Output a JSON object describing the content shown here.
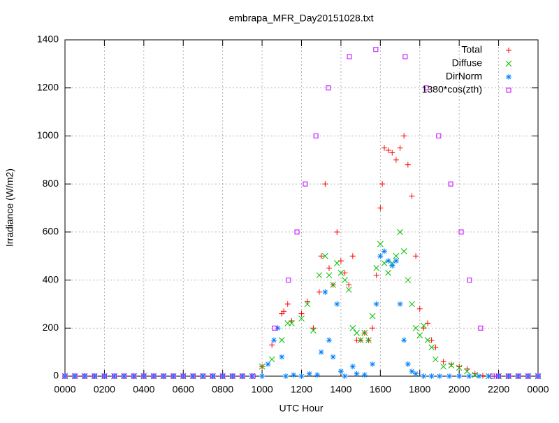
{
  "chart_data": {
    "type": "scatter",
    "title": "embrapa_MFR_Day20151028.txt",
    "x_label": "UTC Hour",
    "y_label": "Irradiance (W/m2)",
    "xlim": [
      0,
      24
    ],
    "ylim": [
      0,
      1400
    ],
    "xticks": [
      {
        "value": 0,
        "label": "0000"
      },
      {
        "value": 2,
        "label": "0200"
      },
      {
        "value": 4,
        "label": "0400"
      },
      {
        "value": 6,
        "label": "0600"
      },
      {
        "value": 8,
        "label": "0800"
      },
      {
        "value": 10,
        "label": "1000"
      },
      {
        "value": 12,
        "label": "1200"
      },
      {
        "value": 14,
        "label": "1400"
      },
      {
        "value": 16,
        "label": "1600"
      },
      {
        "value": 18,
        "label": "1800"
      },
      {
        "value": 20,
        "label": "2000"
      },
      {
        "value": 22,
        "label": "2200"
      },
      {
        "value": 24,
        "label": "0000"
      }
    ],
    "yticks": [
      0,
      200,
      400,
      600,
      800,
      1000,
      1200,
      1400
    ],
    "grid": true,
    "legend": "top-right",
    "series": [
      {
        "name": "Total",
        "color": "#ff0000",
        "marker": "plus",
        "x": [
          0,
          0.5,
          1,
          1.5,
          2,
          2.5,
          3,
          3.5,
          4,
          4.5,
          5,
          5.5,
          6,
          6.5,
          7,
          7.5,
          8,
          8.5,
          9,
          9.5,
          10,
          10.5,
          11,
          11.1,
          11.3,
          11.5,
          12,
          12.3,
          12.6,
          12.9,
          13,
          13.2,
          13.4,
          13.6,
          13.8,
          14,
          14.2,
          14.4,
          14.6,
          14.8,
          15,
          15.2,
          15.4,
          15.6,
          15.8,
          16,
          16.1,
          16.2,
          16.4,
          16.6,
          16.8,
          17,
          17.2,
          17.4,
          17.6,
          17.8,
          18,
          18.2,
          18.4,
          18.6,
          18.8,
          19.2,
          19.6,
          20,
          20.4,
          20.8,
          21.2,
          21.5,
          22,
          22.5,
          23,
          23.5,
          24
        ],
        "values": [
          0,
          0,
          0,
          0,
          0,
          0,
          0,
          0,
          0,
          0,
          0,
          0,
          0,
          0,
          0,
          0,
          0,
          0,
          0,
          0,
          40,
          130,
          260,
          270,
          300,
          230,
          260,
          310,
          200,
          350,
          500,
          800,
          450,
          380,
          600,
          480,
          430,
          380,
          500,
          150,
          150,
          180,
          150,
          200,
          420,
          700,
          800,
          950,
          940,
          930,
          900,
          950,
          1000,
          880,
          750,
          500,
          280,
          200,
          220,
          150,
          120,
          60,
          50,
          40,
          30,
          10,
          2,
          0,
          0,
          0,
          0,
          0,
          0
        ]
      },
      {
        "name": "Diffuse",
        "color": "#00c000",
        "marker": "cross",
        "x": [
          0,
          0.5,
          1,
          1.5,
          2,
          2.5,
          3,
          3.5,
          4,
          4.5,
          5,
          5.5,
          6,
          6.5,
          7,
          7.5,
          8,
          8.5,
          9,
          9.5,
          10,
          10.5,
          11,
          11.3,
          11.5,
          12,
          12.3,
          12.6,
          12.9,
          13.2,
          13.4,
          13.6,
          13.8,
          14,
          14.2,
          14.4,
          14.6,
          14.8,
          15,
          15.2,
          15.4,
          15.6,
          15.8,
          16,
          16.2,
          16.4,
          16.6,
          16.8,
          17,
          17.2,
          17.4,
          17.6,
          17.8,
          18,
          18.2,
          18.4,
          18.6,
          18.8,
          19.2,
          19.6,
          20,
          20.4,
          20.8,
          21.5,
          22,
          22.5,
          23,
          23.5,
          24
        ],
        "values": [
          0,
          0,
          0,
          0,
          0,
          0,
          0,
          0,
          0,
          0,
          0,
          0,
          0,
          0,
          0,
          0,
          0,
          0,
          0,
          0,
          40,
          70,
          150,
          220,
          220,
          240,
          300,
          190,
          420,
          500,
          420,
          380,
          470,
          430,
          400,
          360,
          200,
          180,
          150,
          180,
          150,
          250,
          450,
          550,
          470,
          430,
          470,
          500,
          600,
          520,
          400,
          300,
          200,
          170,
          210,
          150,
          120,
          70,
          40,
          45,
          35,
          20,
          5,
          0,
          0,
          0,
          0,
          0,
          0
        ]
      },
      {
        "name": "DirNorm",
        "color": "#0080ff",
        "marker": "star",
        "x": [
          0,
          0.5,
          1,
          1.5,
          2,
          2.5,
          3,
          3.5,
          4,
          4.5,
          5,
          5.5,
          6,
          6.5,
          7,
          7.5,
          8,
          8.5,
          9,
          9.5,
          10,
          10.3,
          10.6,
          10.8,
          11,
          11.2,
          11.6,
          12,
          12.4,
          12.8,
          13,
          13.2,
          13.4,
          13.6,
          13.8,
          14,
          14.2,
          14.6,
          14.8,
          15.2,
          15.6,
          15.8,
          16,
          16.2,
          16.4,
          16.6,
          16.8,
          17,
          17.2,
          17.4,
          17.6,
          17.8,
          18.2,
          18.6,
          19,
          19.5,
          20,
          20.5,
          21,
          21.5,
          22,
          22.5,
          23,
          23.5,
          24
        ],
        "values": [
          0,
          0,
          0,
          0,
          0,
          0,
          0,
          0,
          0,
          0,
          0,
          0,
          0,
          0,
          0,
          0,
          0,
          0,
          0,
          0,
          0,
          50,
          150,
          200,
          80,
          0,
          5,
          0,
          10,
          5,
          100,
          350,
          150,
          80,
          300,
          20,
          0,
          40,
          10,
          5,
          50,
          300,
          500,
          520,
          480,
          460,
          480,
          300,
          150,
          50,
          20,
          10,
          0,
          0,
          0,
          0,
          0,
          0,
          0,
          0,
          0,
          0,
          0,
          0,
          0
        ]
      },
      {
        "name": "1380*cos(zth)",
        "color": "#c000ff",
        "marker": "square",
        "x": [
          0,
          0.5,
          1,
          1.5,
          2,
          2.5,
          3,
          3.5,
          4,
          4.5,
          5,
          5.5,
          6,
          6.5,
          7,
          7.5,
          8,
          8.5,
          9,
          9.54,
          10.63,
          11.34,
          11.77,
          12.19,
          12.73,
          13.36,
          14.43,
          15.77,
          17.26,
          18.33,
          18.96,
          19.57,
          20.1,
          20.52,
          21.09,
          21.69,
          22,
          22.5,
          23,
          23.5,
          24
        ],
        "values": [
          0,
          0,
          0,
          0,
          0,
          0,
          0,
          0,
          0,
          0,
          0,
          0,
          0,
          0,
          0,
          0,
          0,
          0,
          0,
          0,
          200,
          400,
          600,
          800,
          1000,
          1200,
          1330,
          1360,
          1330,
          1200,
          1000,
          800,
          600,
          400,
          200,
          0,
          0,
          0,
          0,
          0,
          0
        ]
      }
    ]
  }
}
